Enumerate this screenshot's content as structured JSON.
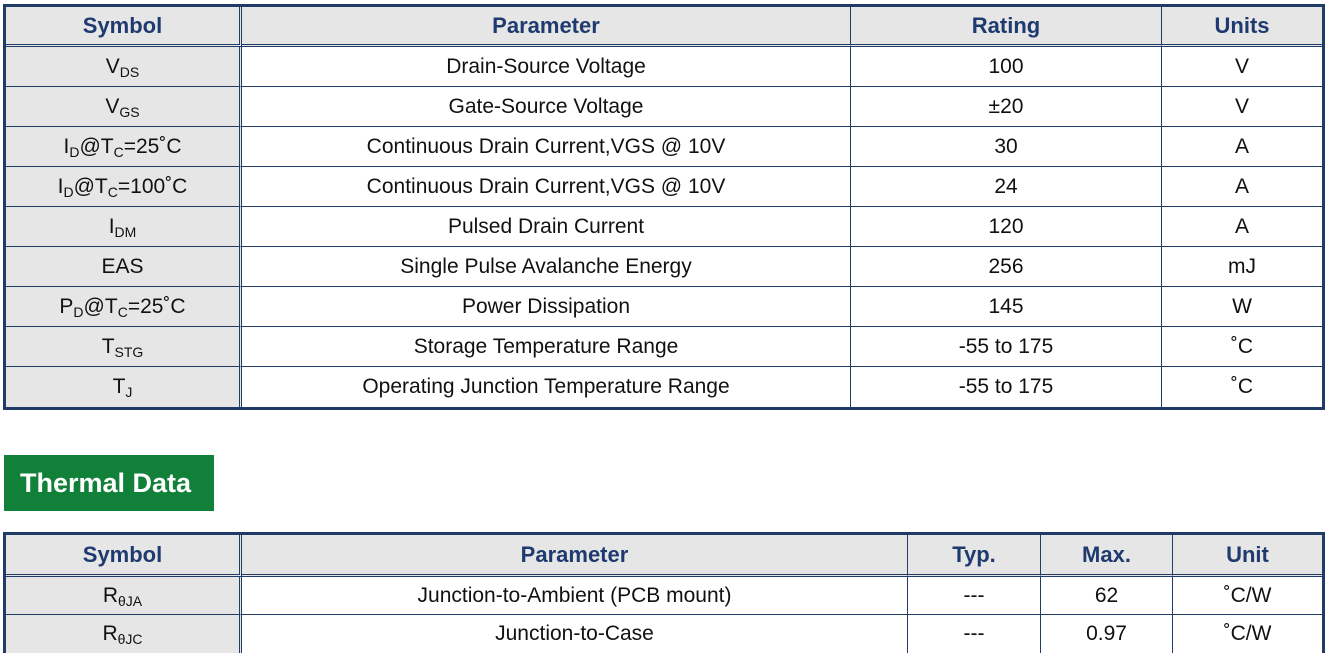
{
  "ratings_table": {
    "headers": {
      "symbol": "Symbol",
      "parameter": "Parameter",
      "rating": "Rating",
      "units": "Units"
    },
    "rows": [
      {
        "sym_main": "V",
        "sym_sub": "DS",
        "sym_tail": "",
        "sym_sub2": "",
        "sym_tail2": "",
        "parameter": "Drain-Source Voltage",
        "rating": "100",
        "units": "V"
      },
      {
        "sym_main": "V",
        "sym_sub": "GS",
        "sym_tail": "",
        "sym_sub2": "",
        "sym_tail2": "",
        "parameter": "Gate-Source Voltage",
        "rating": "±20",
        "units": "V"
      },
      {
        "sym_main": "I",
        "sym_sub": "D",
        "sym_tail": "@T",
        "sym_sub2": "C",
        "sym_tail2": "=25˚C",
        "parameter": "Continuous Drain Current,VGS @ 10V",
        "rating": "30",
        "units": "A"
      },
      {
        "sym_main": "I",
        "sym_sub": "D",
        "sym_tail": "@T",
        "sym_sub2": "C",
        "sym_tail2": "=100˚C",
        "parameter": "Continuous Drain Current,VGS @ 10V",
        "rating": "24",
        "units": "A"
      },
      {
        "sym_main": "I",
        "sym_sub": "DM",
        "sym_tail": "",
        "sym_sub2": "",
        "sym_tail2": "",
        "parameter": "Pulsed Drain Current",
        "rating": "120",
        "units": "A"
      },
      {
        "sym_main": "EAS",
        "sym_sub": "",
        "sym_tail": "",
        "sym_sub2": "",
        "sym_tail2": "",
        "parameter": "Single Pulse Avalanche Energy",
        "rating": "256",
        "units": "mJ"
      },
      {
        "sym_main": "P",
        "sym_sub": "D",
        "sym_tail": "@T",
        "sym_sub2": "C",
        "sym_tail2": "=25˚C",
        "parameter": "Power Dissipation",
        "rating": "145",
        "units": "W"
      },
      {
        "sym_main": "T",
        "sym_sub": "STG",
        "sym_tail": "",
        "sym_sub2": "",
        "sym_tail2": "",
        "parameter": "Storage Temperature Range",
        "rating": "-55 to 175",
        "units": "˚C"
      },
      {
        "sym_main": "T",
        "sym_sub": "J",
        "sym_tail": "",
        "sym_sub2": "",
        "sym_tail2": "",
        "parameter": "Operating Junction Temperature Range",
        "rating": "-55 to 175",
        "units": "˚C"
      }
    ]
  },
  "section_title": "Thermal Data",
  "thermal_table": {
    "headers": {
      "symbol": "Symbol",
      "parameter": "Parameter",
      "typ": "Typ.",
      "max": "Max.",
      "unit": "Unit"
    },
    "rows": [
      {
        "sym_main": "R",
        "sym_sub": "θJA",
        "parameter": "Junction-to-Ambient (PCB mount)",
        "typ": "---",
        "max": "62",
        "unit": "˚C/W"
      },
      {
        "sym_main": "R",
        "sym_sub": "θJC",
        "parameter": "Junction-to-Case",
        "typ": "---",
        "max": "0.97",
        "unit": "˚C/W"
      }
    ]
  },
  "colors": {
    "border": "#1f3b66",
    "header_text": "#1f3a6e",
    "header_bg": "#e6e6e6",
    "section_bg": "#118039"
  }
}
